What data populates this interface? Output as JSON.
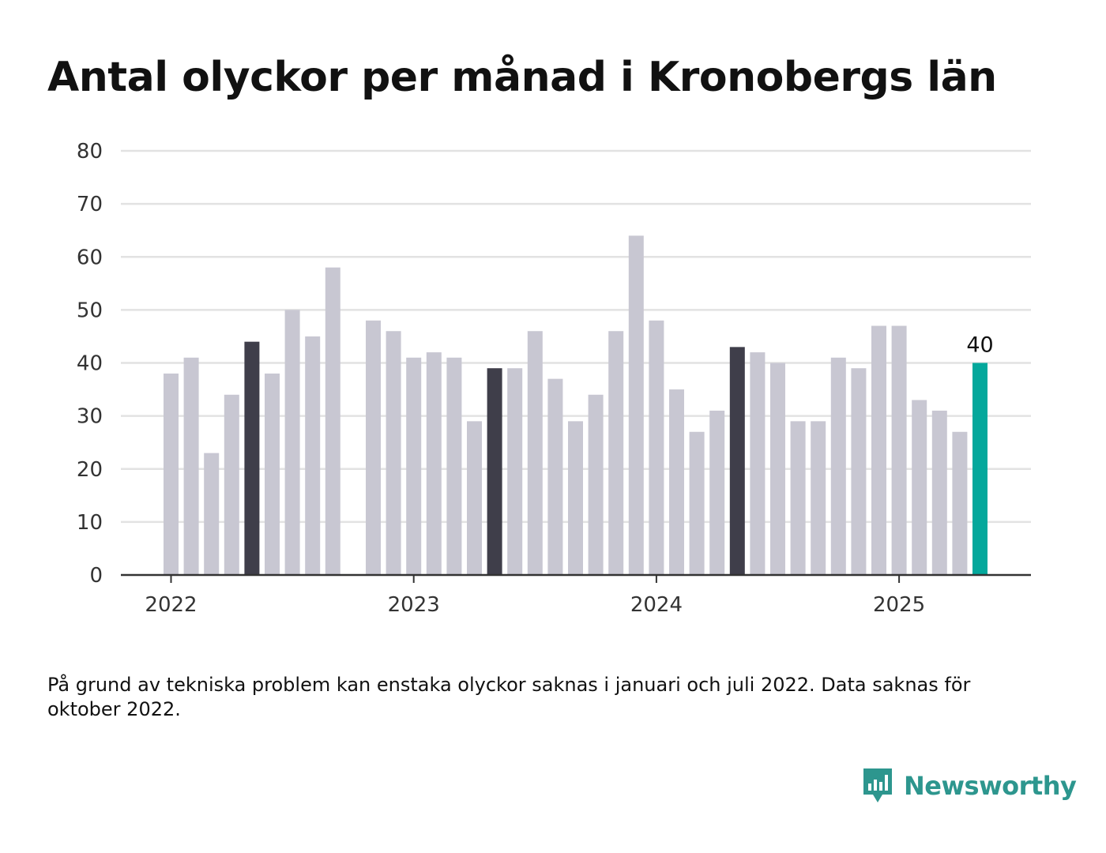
{
  "title": "Antal olyckor per månad i Kronobergs län",
  "note": "På grund av tekniska problem kan enstaka olyckor saknas i januari och juli 2022. Data saknas för oktober 2022.",
  "brand": {
    "name": "Newsworthy",
    "icon": "newsworthy-logo-icon",
    "color": "#2d968e"
  },
  "colors": {
    "default_bar": "#c8c7d2",
    "highlight_bar": "#3f3e4a",
    "latest_bar": "#04a89c",
    "grid": "#e2e2e2",
    "axis": "#333333"
  },
  "chart_data": {
    "type": "bar",
    "title": "Antal olyckor per månad i Kronobergs län",
    "xlabel": "",
    "ylabel": "",
    "ylim": [
      0,
      80
    ],
    "y_ticks": [
      0,
      10,
      20,
      30,
      40,
      50,
      60,
      70,
      80
    ],
    "x_tick_labels": [
      "2022",
      "2023",
      "2024",
      "2025"
    ],
    "grid": true,
    "categories": [
      "2022-01",
      "2022-02",
      "2022-03",
      "2022-04",
      "2022-05",
      "2022-06",
      "2022-07",
      "2022-08",
      "2022-09",
      "2022-10",
      "2022-11",
      "2022-12",
      "2023-01",
      "2023-02",
      "2023-03",
      "2023-04",
      "2023-05",
      "2023-06",
      "2023-07",
      "2023-08",
      "2023-09",
      "2023-10",
      "2023-11",
      "2023-12",
      "2024-01",
      "2024-02",
      "2024-03",
      "2024-04",
      "2024-05",
      "2024-06",
      "2024-07",
      "2024-08",
      "2024-09",
      "2024-10",
      "2024-11",
      "2024-12",
      "2025-01",
      "2025-02",
      "2025-03",
      "2025-04",
      "2025-05"
    ],
    "values": [
      38,
      41,
      23,
      34,
      44,
      38,
      50,
      45,
      58,
      null,
      48,
      46,
      41,
      42,
      41,
      29,
      39,
      39,
      46,
      37,
      29,
      34,
      46,
      64,
      48,
      35,
      27,
      31,
      43,
      42,
      40,
      29,
      29,
      41,
      39,
      47,
      47,
      33,
      31,
      27,
      40
    ],
    "highlighted_months": [
      "2022-05",
      "2023-05",
      "2024-05"
    ],
    "latest": {
      "category": "2025-05",
      "value": 40,
      "label": "40"
    }
  }
}
